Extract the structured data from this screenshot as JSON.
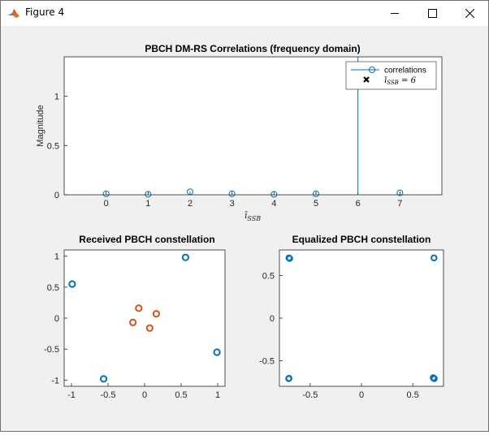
{
  "window": {
    "title": "Figure 4",
    "icons": {
      "app": "matlab-icon",
      "minimize": "minimize-icon",
      "maximize": "maximize-icon",
      "close": "close-icon"
    }
  },
  "chart_data": [
    {
      "type": "stem",
      "title": "PBCH DM-RS Correlations (frequency domain)",
      "xlabel": "ī_SSB",
      "ylabel": "Magnitude",
      "xlim": [
        -1,
        8
      ],
      "ylim": [
        0,
        1.4
      ],
      "xticks": [
        "0",
        "1",
        "2",
        "3",
        "4",
        "5",
        "6",
        "7"
      ],
      "yticks": [
        "0",
        "0.5",
        "1"
      ],
      "legend": {
        "placement": "top-right",
        "entries": [
          "correlations",
          "ī_SSB = 6"
        ]
      },
      "series": [
        {
          "name": "correlations",
          "x": [
            0,
            1,
            2,
            3,
            4,
            5,
            6,
            7
          ],
          "values": [
            0.01,
            0.005,
            0.03,
            0.01,
            0.005,
            0.01,
            1.42,
            0.02
          ],
          "color": "#0072bd"
        }
      ],
      "detected_index": 6
    },
    {
      "type": "scatter",
      "title": "Received PBCH constellation",
      "xlim": [
        -1.1,
        1.1
      ],
      "ylim": [
        -1.1,
        1.1
      ],
      "xticks": [
        "-1",
        "-0.5",
        "0",
        "0.5",
        "1"
      ],
      "yticks": [
        "1",
        "0.5",
        "0",
        "-0.5",
        "-1"
      ],
      "series": [
        {
          "color": "#0072bd",
          "points": [
            [
              -0.99,
              0.55
            ],
            [
              0.56,
              0.98
            ],
            [
              0.99,
              -0.55
            ],
            [
              -0.56,
              -0.98
            ]
          ]
        },
        {
          "color": "#d95319",
          "points": [
            [
              -0.08,
              0.16
            ],
            [
              0.16,
              0.07
            ],
            [
              -0.16,
              -0.07
            ],
            [
              0.07,
              -0.16
            ]
          ]
        }
      ]
    },
    {
      "type": "scatter",
      "title": "Equalized PBCH constellation",
      "xlim": [
        -0.8,
        0.8
      ],
      "ylim": [
        -0.8,
        0.8
      ],
      "xticks": [
        "-0.5",
        "0",
        "0.5"
      ],
      "yticks": [
        "0.5",
        "0",
        "-0.5"
      ],
      "series": [
        {
          "color": "#0072bd",
          "points": [
            [
              -0.707,
              0.707
            ],
            [
              0.707,
              0.707
            ],
            [
              -0.707,
              -0.707
            ],
            [
              0.707,
              -0.707
            ],
            [
              -0.7,
              0.7
            ],
            [
              0.7,
              -0.7
            ],
            [
              0.71,
              -0.71
            ],
            [
              -0.71,
              -0.71
            ]
          ]
        }
      ]
    }
  ]
}
